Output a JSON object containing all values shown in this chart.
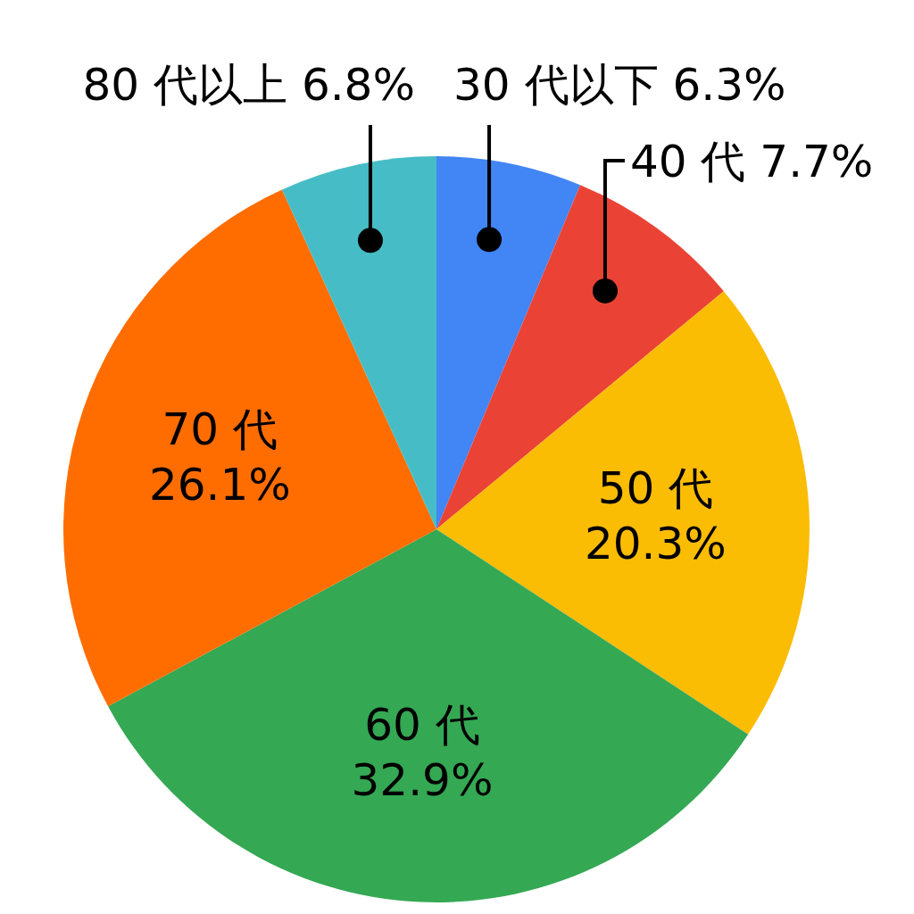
{
  "chart_data": {
    "type": "pie",
    "categories": [
      "30 代以下",
      "40 代",
      "50 代",
      "60 代",
      "70 代",
      "80 代以上"
    ],
    "values": [
      6.3,
      7.7,
      20.3,
      32.9,
      26.1,
      6.8
    ],
    "value_labels": [
      "6.3%",
      "7.7%",
      "20.3%",
      "32.9%",
      "26.1%",
      "6.8%"
    ],
    "colors": [
      "#4285f4",
      "#ea4335",
      "#fbbc04",
      "#34a853",
      "#ff6d01",
      "#46bdc6"
    ]
  }
}
